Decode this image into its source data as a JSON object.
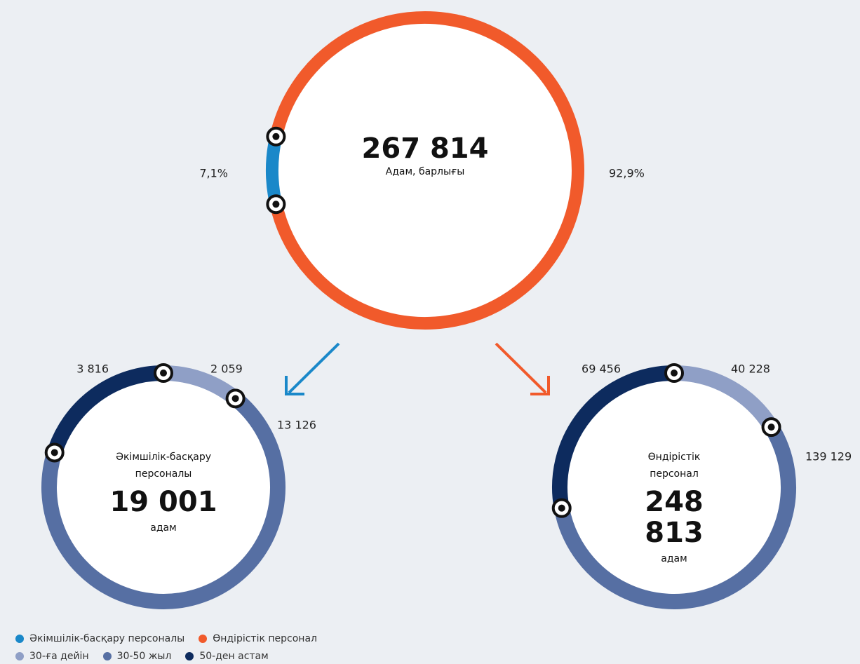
{
  "chart_data": [
    {
      "type": "donut",
      "categories": [
        "Әкімшілік-басқару персоналы",
        "Өндірістік персонал"
      ],
      "colors": [
        "#1a88c9",
        "#f15a2b"
      ],
      "values": [
        7.1,
        92.9
      ],
      "value_labels": [
        "7,1%",
        "92,9%"
      ],
      "center": {
        "value": "267 814",
        "label": "Адам, барлығы"
      }
    },
    {
      "type": "donut",
      "title": "Әкімшілік-басқару персоналы",
      "categories": [
        "30-ға дейін",
        "30-50 жыл",
        "50-ден астам"
      ],
      "colors": [
        "#8f9fc6",
        "#566fa3",
        "#0d2b5e"
      ],
      "values": [
        2059,
        13126,
        3816
      ],
      "value_labels": [
        "2 059",
        "13 126",
        "3 816"
      ],
      "center": {
        "value": "19 001",
        "label": "адам"
      }
    },
    {
      "type": "donut",
      "title": "Өндірістік персонал",
      "values": [
        40228,
        139129,
        69456
      ],
      "value_labels": [
        "40 228",
        "139 129",
        "69 456"
      ],
      "center": {
        "value": "248 813",
        "label": "адам"
      }
    }
  ]
}
